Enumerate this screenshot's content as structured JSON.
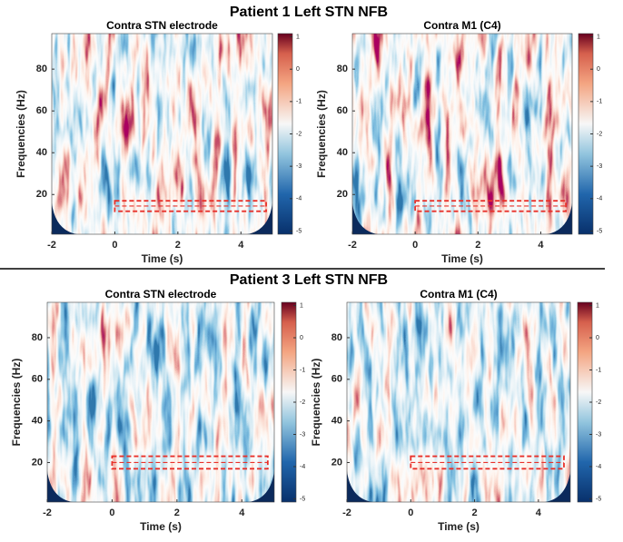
{
  "suptitles": [
    "Patient 1 Left STN NFB",
    "Patient 3 Left STN NFB"
  ],
  "chart_data": [
    {
      "type": "heatmap",
      "title": "Contra STN electrode",
      "xlabel": "Time (s)",
      "ylabel": "Frequencies (Hz)",
      "xlim": [
        -2,
        5
      ],
      "xticks": [
        -2,
        0,
        2,
        4
      ],
      "ylim": [
        1,
        97
      ],
      "yticks": [
        20,
        40,
        60,
        80
      ],
      "clim": [
        -5.1,
        1.1
      ],
      "cticks": [
        -5,
        -4,
        -3,
        -2,
        -1,
        0,
        1
      ],
      "colormap": "RdBu",
      "box": {
        "x": [
          0,
          4.8
        ],
        "y": [
          12,
          17
        ],
        "color": "#e8312a"
      }
    },
    {
      "type": "heatmap",
      "title": "Contra M1 (C4)",
      "xlabel": "Time (s)",
      "ylabel": "Frequencies (Hz)",
      "xlim": [
        -2,
        5
      ],
      "xticks": [
        -2,
        0,
        2,
        4
      ],
      "ylim": [
        1,
        97
      ],
      "yticks": [
        20,
        40,
        60,
        80
      ],
      "clim": [
        -5.1,
        1.1
      ],
      "cticks": [
        -5,
        -4,
        -3,
        -2,
        -1,
        0,
        1
      ],
      "colormap": "RdBu",
      "box": {
        "x": [
          0,
          4.8
        ],
        "y": [
          12,
          17
        ],
        "color": "#e8312a"
      }
    },
    {
      "type": "heatmap",
      "title": "Contra STN electrode",
      "xlabel": "Time (s)",
      "ylabel": "Frequencies (Hz)",
      "xlim": [
        -2,
        5
      ],
      "xticks": [
        -2,
        0,
        2,
        4
      ],
      "ylim": [
        1,
        97
      ],
      "yticks": [
        20,
        40,
        60,
        80
      ],
      "clim": [
        -5.1,
        1.1
      ],
      "cticks": [
        -5,
        -4,
        -3,
        -2,
        -1,
        0,
        1
      ],
      "colormap": "RdBu",
      "box": {
        "x": [
          0,
          4.8
        ],
        "y": [
          17,
          23
        ],
        "color": "#e8312a"
      }
    },
    {
      "type": "heatmap",
      "title": "Contra M1 (C4)",
      "xlabel": "Time (s)",
      "ylabel": "Frequencies (Hz)",
      "xlim": [
        -2,
        5
      ],
      "xticks": [
        -2,
        0,
        2,
        4
      ],
      "ylim": [
        1,
        97
      ],
      "yticks": [
        20,
        40,
        60,
        80
      ],
      "clim": [
        -5.1,
        1.1
      ],
      "cticks": [
        -5,
        -4,
        -3,
        -2,
        -1,
        0,
        1
      ],
      "colormap": "RdBu",
      "box": {
        "x": [
          0,
          4.8
        ],
        "y": [
          17,
          23
        ],
        "color": "#e8312a"
      }
    }
  ]
}
